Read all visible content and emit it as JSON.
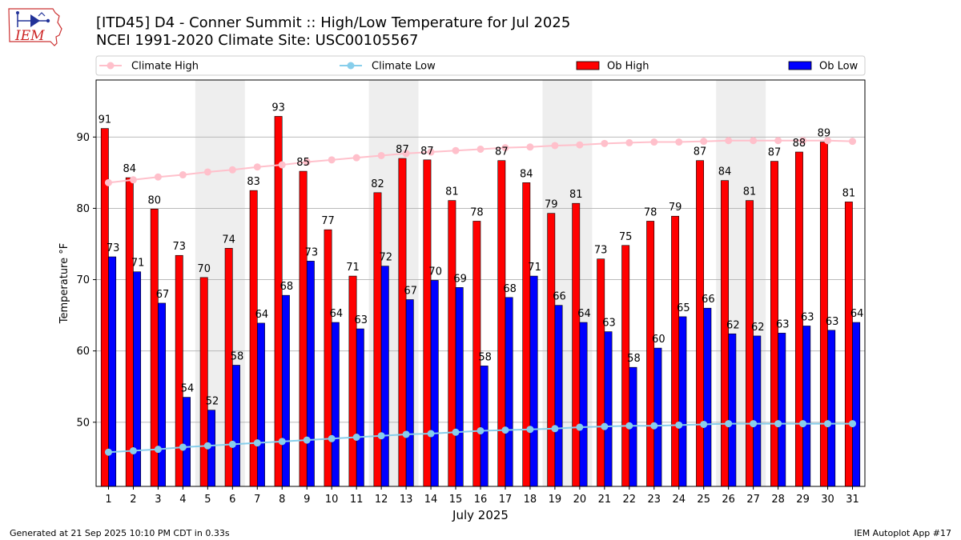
{
  "header": {
    "title_line1": "[ITD45] D4 - Conner Summit  :: High/Low Temperature for Jul 2025",
    "title_line2": "NCEI 1991-2020 Climate Site: USC00105567",
    "logo_text": "IEM"
  },
  "footer": {
    "generated": "Generated at 21 Sep 2025 10:10 PM CDT in 0.33s",
    "app": "IEM Autoplot App #17"
  },
  "colors": {
    "ob_high": "#ff0000",
    "ob_low": "#0000ff",
    "climate_high": "#ffc0cb",
    "climate_low": "#87ceeb",
    "weekend_band": "#eeeeee",
    "grid": "#b0b0b0"
  },
  "chart_data": {
    "type": "bar",
    "title": "[ITD45] D4 - Conner Summit  :: High/Low Temperature for Jul 2025",
    "subtitle": "NCEI 1991-2020 Climate Site: USC00105567",
    "xlabel": "July 2025",
    "ylabel": "Temperature °F",
    "ylim": [
      41,
      98
    ],
    "yticks": [
      50,
      60,
      70,
      80,
      90
    ],
    "grid": "horizontal",
    "legend": "top, horizontal",
    "categories": [
      "1",
      "2",
      "3",
      "4",
      "5",
      "6",
      "7",
      "8",
      "9",
      "10",
      "11",
      "12",
      "13",
      "14",
      "15",
      "16",
      "17",
      "18",
      "19",
      "20",
      "21",
      "22",
      "23",
      "24",
      "25",
      "26",
      "27",
      "28",
      "29",
      "30",
      "31"
    ],
    "weekend_bands": [
      [
        5,
        6
      ],
      [
        12,
        13
      ],
      [
        19,
        20
      ],
      [
        26,
        27
      ]
    ],
    "series": [
      {
        "name": "Ob High",
        "kind": "bar",
        "values": [
          91.2,
          84.3,
          79.9,
          73.4,
          70.3,
          74.4,
          82.5,
          92.9,
          85.2,
          77.0,
          70.5,
          82.2,
          87.0,
          86.8,
          81.1,
          78.2,
          86.7,
          83.6,
          79.3,
          80.7,
          72.9,
          74.8,
          78.2,
          78.9,
          86.7,
          83.9,
          81.1,
          86.6,
          87.9,
          89.3,
          80.9
        ],
        "labels": [
          "91",
          "84",
          "80",
          "73",
          "70",
          "74",
          "83",
          "93",
          "85",
          "77",
          "71",
          "82",
          "87",
          "87",
          "81",
          "78",
          "87",
          "84",
          "79",
          "81",
          "73",
          "75",
          "78",
          "79",
          "87",
          "84",
          "81",
          "87",
          "88",
          "89",
          "81"
        ]
      },
      {
        "name": "Ob Low",
        "kind": "bar",
        "values": [
          73.2,
          71.1,
          66.7,
          53.5,
          51.7,
          58.0,
          63.9,
          67.8,
          72.6,
          64.0,
          63.1,
          71.9,
          67.2,
          69.9,
          68.9,
          57.9,
          67.5,
          70.5,
          66.4,
          64.0,
          62.7,
          57.7,
          60.4,
          64.8,
          66.0,
          62.4,
          62.1,
          62.5,
          63.5,
          62.9,
          64.0
        ],
        "labels": [
          "73",
          "71",
          "67",
          "54",
          "52",
          "58",
          "64",
          "68",
          "73",
          "64",
          "63",
          "72",
          "67",
          "70",
          "69",
          "58",
          "68",
          "71",
          "66",
          "64",
          "63",
          "58",
          "60",
          "65",
          "66",
          "62",
          "62",
          "63",
          "63",
          "63",
          "64"
        ]
      },
      {
        "name": "Climate High",
        "kind": "line",
        "values": [
          83.6,
          84.0,
          84.4,
          84.7,
          85.1,
          85.4,
          85.8,
          86.1,
          86.5,
          86.8,
          87.1,
          87.4,
          87.7,
          87.9,
          88.1,
          88.3,
          88.5,
          88.6,
          88.8,
          88.9,
          89.1,
          89.2,
          89.3,
          89.3,
          89.4,
          89.5,
          89.5,
          89.5,
          89.5,
          89.5,
          89.4
        ]
      },
      {
        "name": "Climate Low",
        "kind": "line",
        "values": [
          45.8,
          46.0,
          46.2,
          46.5,
          46.7,
          46.9,
          47.1,
          47.3,
          47.5,
          47.7,
          47.9,
          48.1,
          48.3,
          48.4,
          48.6,
          48.8,
          48.9,
          49.0,
          49.1,
          49.3,
          49.4,
          49.5,
          49.5,
          49.6,
          49.7,
          49.8,
          49.8,
          49.8,
          49.8,
          49.8,
          49.8
        ]
      }
    ]
  }
}
